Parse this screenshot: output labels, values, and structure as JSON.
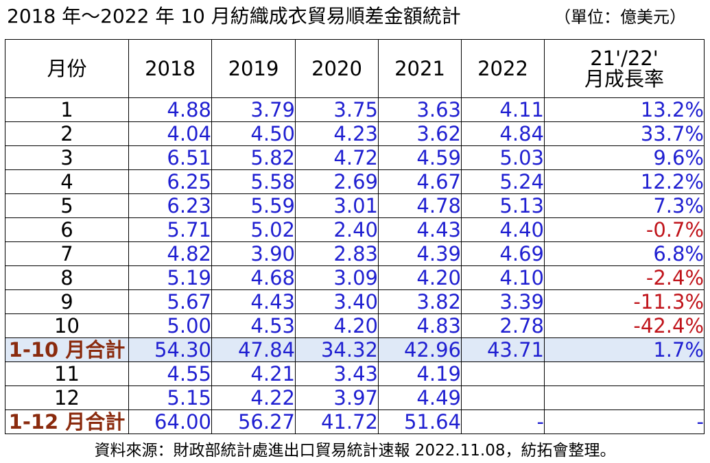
{
  "title": "2018 年～2022 年 10 月紡織成衣貿易順差金額統計",
  "unit": "（單位：億美元）",
  "table": {
    "headers": [
      "月份",
      "2018",
      "2019",
      "2020",
      "2021",
      "2022",
      "21'/22'",
      "月成長率"
    ],
    "rows": [
      {
        "month": "1",
        "v2018": "4.88",
        "v2019": "3.79",
        "v2020": "3.75",
        "v2021": "3.63",
        "v2022": "4.11",
        "growth": "13.2%"
      },
      {
        "month": "2",
        "v2018": "4.04",
        "v2019": "4.50",
        "v2020": "4.23",
        "v2021": "3.62",
        "v2022": "4.84",
        "growth": "33.7%"
      },
      {
        "month": "3",
        "v2018": "6.51",
        "v2019": "5.82",
        "v2020": "4.72",
        "v2021": "4.59",
        "v2022": "5.03",
        "growth": "9.6%"
      },
      {
        "month": "4",
        "v2018": "6.25",
        "v2019": "5.58",
        "v2020": "2.69",
        "v2021": "4.67",
        "v2022": "5.24",
        "growth": "12.2%"
      },
      {
        "month": "5",
        "v2018": "6.23",
        "v2019": "5.59",
        "v2020": "3.01",
        "v2021": "4.78",
        "v2022": "5.13",
        "growth": "7.3%"
      },
      {
        "month": "6",
        "v2018": "5.71",
        "v2019": "5.02",
        "v2020": "2.40",
        "v2021": "4.43",
        "v2022": "4.40",
        "growth": "-0.7%"
      },
      {
        "month": "7",
        "v2018": "4.82",
        "v2019": "3.90",
        "v2020": "2.83",
        "v2021": "4.39",
        "v2022": "4.69",
        "growth": "6.8%"
      },
      {
        "month": "8",
        "v2018": "5.19",
        "v2019": "4.68",
        "v2020": "3.09",
        "v2021": "4.20",
        "v2022": "4.10",
        "growth": "-2.4%"
      },
      {
        "month": "9",
        "v2018": "5.67",
        "v2019": "4.43",
        "v2020": "3.40",
        "v2021": "3.82",
        "v2022": "3.39",
        "growth": "-11.3%"
      },
      {
        "month": "10",
        "v2018": "5.00",
        "v2019": "4.53",
        "v2020": "4.20",
        "v2021": "4.83",
        "v2022": "2.78",
        "growth": "-42.4%"
      },
      {
        "month": "1-10 月合計",
        "v2018": "54.30",
        "v2019": "47.84",
        "v2020": "34.32",
        "v2021": "42.96",
        "v2022": "43.71",
        "growth": "1.7%"
      },
      {
        "month": "11",
        "v2018": "4.55",
        "v2019": "4.21",
        "v2020": "3.43",
        "v2021": "4.19",
        "v2022": "",
        "growth": ""
      },
      {
        "month": "12",
        "v2018": "5.15",
        "v2019": "4.22",
        "v2020": "3.97",
        "v2021": "4.49",
        "v2022": "",
        "growth": ""
      },
      {
        "month": "1-12 月合計",
        "v2018": "64.00",
        "v2019": "56.27",
        "v2020": "41.72",
        "v2021": "51.64",
        "v2022": "-",
        "growth": "-"
      }
    ]
  },
  "colors": {
    "value_text": "#1f1fd1",
    "negative_text": "#c0141b",
    "total_label": "#8a2a0d",
    "subtotal_bg": "#dfe9f7"
  },
  "footer": "資料來源：財政部統計處進出口貿易統計速報 2022.11.08，紡拓會整理。"
}
